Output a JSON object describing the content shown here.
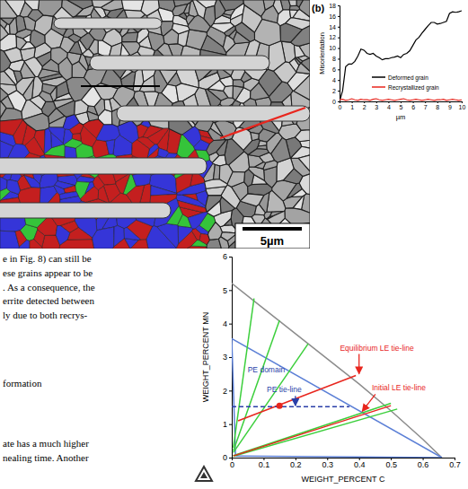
{
  "micrograph": {
    "scale_bar": "5µm"
  },
  "chart_data": [
    {
      "type": "line",
      "panel_label": "(b)",
      "x_label": "µm",
      "y_label": "Misorientation",
      "x": [
        0,
        0.25,
        0.5,
        0.75,
        1,
        1.25,
        1.5,
        1.75,
        2,
        2.25,
        2.5,
        2.75,
        3,
        3.25,
        3.5,
        3.75,
        4,
        4.25,
        4.5,
        4.75,
        5,
        5.25,
        5.5,
        5.75,
        6,
        6.25,
        6.5,
        6.75,
        7,
        7.25,
        7.5,
        7.75,
        8,
        8.25,
        8.5,
        8.75,
        9,
        9.25,
        9.5,
        9.75,
        10
      ],
      "xlim": [
        0,
        10
      ],
      "xticks": [
        0,
        1,
        2,
        3,
        4,
        5,
        6,
        7,
        8,
        9,
        10
      ],
      "ylim": [
        0,
        18
      ],
      "yticks": [
        0,
        2,
        4,
        6,
        8,
        10,
        12,
        14,
        16,
        18
      ],
      "legend": "lower right",
      "series": [
        {
          "name": "Deformed grain",
          "color": "#000000",
          "line_style": "solid",
          "values": [
            0,
            2,
            6.5,
            7,
            7,
            7.5,
            8.5,
            9.8,
            9.6,
            9,
            8.8,
            9,
            8.5,
            8.2,
            7.8,
            8,
            8,
            8.2,
            8.3,
            8.5,
            8.2,
            8.8,
            9,
            9.5,
            10.5,
            11.5,
            12,
            12.8,
            13.5,
            14.2,
            14.8,
            14.8,
            14.5,
            14.6,
            14.8,
            15,
            16.5,
            16.8,
            16.7,
            16.8,
            17
          ]
        },
        {
          "name": "Recrystallized grain",
          "color": "#e8261e",
          "line_style": "solid",
          "values": [
            0.3,
            0.4,
            0.2,
            0.3,
            0.5,
            0.3,
            0.2,
            0.4,
            0.3,
            0.3,
            0.2,
            0.4,
            0.5,
            0.3,
            0.2,
            0.3,
            0.4,
            0.3,
            0.2,
            0.3,
            0.4,
            0.5,
            0.3,
            0.2,
            0.3,
            0.4,
            0.3,
            0.2,
            0.3,
            0.4,
            0.3,
            0.2,
            0.3,
            0.3,
            0.4,
            0.2,
            0.3,
            0.4,
            0.3,
            0.2,
            0.3
          ]
        }
      ]
    },
    {
      "type": "line",
      "x_label": "WEIGHT_PERCENT C",
      "y_label": "WEIGHT_PERCENT MN",
      "xlim": [
        0,
        0.7
      ],
      "xticks": [
        0,
        0.1,
        0.2,
        0.3,
        0.4,
        0.5,
        0.6,
        0.7
      ],
      "ylim": [
        0,
        6
      ],
      "yticks": [
        0,
        1,
        2,
        3,
        4,
        5,
        6
      ],
      "series": [
        {
          "color": "#8c8c8c",
          "line_style": "solid",
          "x": [
            0,
            0.1,
            0.2,
            0.3,
            0.4,
            0.5,
            0.6,
            0.66
          ],
          "values": [
            5.2,
            4.45,
            3.7,
            2.95,
            2.2,
            1.4,
            0.55,
            0
          ]
        },
        {
          "color": "#5b7fd6",
          "line_style": "solid",
          "x": [
            0,
            0.66
          ],
          "values": [
            3.55,
            0
          ]
        },
        {
          "color": "#5b7fd6",
          "line_style": "solid",
          "x": [
            0.012,
            0
          ],
          "values": [
            0.05,
            3.55
          ]
        },
        {
          "color": "#5b7fd6",
          "line_style": "solid",
          "x": [
            0.012,
            0.66
          ],
          "values": [
            0.05,
            0
          ]
        },
        {
          "color": "#3ccf3c",
          "line_style": "solid",
          "x": [
            0.005,
            0.07
          ],
          "values": [
            0.3,
            4.75
          ]
        },
        {
          "color": "#3ccf3c",
          "line_style": "solid",
          "x": [
            0.005,
            0.15
          ],
          "values": [
            0.2,
            4.1
          ]
        },
        {
          "color": "#3ccf3c",
          "line_style": "solid",
          "x": [
            0.005,
            0.24
          ],
          "values": [
            0.15,
            3.4
          ]
        },
        {
          "color": "#3ccf3c",
          "line_style": "solid",
          "x": [
            0.005,
            0.52
          ],
          "values": [
            0.04,
            1.45
          ]
        },
        {
          "color": "#3ccf3c",
          "line_style": "solid",
          "x": [
            0.005,
            0.5
          ],
          "values": [
            0.06,
            1.62
          ]
        },
        {
          "color": "#e8261e",
          "line_style": "solid",
          "x": [
            0.005,
            0.5
          ],
          "values": [
            0.05,
            1.55
          ]
        },
        {
          "color": "#e8261e",
          "line_style": "solid",
          "x": [
            0.02,
            0.39
          ],
          "values": [
            1.1,
            2.45
          ]
        },
        {
          "color": "#2a3fa8",
          "line_style": "dashed",
          "x": [
            0,
            0.37
          ],
          "values": [
            1.52,
            1.52
          ]
        },
        {
          "color": "#e8261e",
          "line_style": "none",
          "marker": "circle",
          "x": [
            0.15
          ],
          "values": [
            1.55
          ]
        }
      ],
      "annotations": [
        {
          "text": "PE domain",
          "x": 0.05,
          "y": 2.55,
          "color": "#2a3fa8"
        },
        {
          "text": "PE tie-line",
          "x": 0.11,
          "y": 1.95,
          "color": "#2a3fa8",
          "arrow": [
            0.2,
            1.55
          ]
        },
        {
          "text": "Equilibrium LE tie-line",
          "x": 0.34,
          "y": 3.2,
          "color": "#e8261e",
          "arrow": [
            0.4,
            2.5
          ]
        },
        {
          "text": "Initial LE tie-line",
          "x": 0.44,
          "y": 2.0,
          "color": "#e8261e",
          "arrow": [
            0.41,
            1.38
          ]
        }
      ]
    }
  ],
  "text": {
    "column_lines": [
      "e in Fig. 8) can still be",
      "ese grains appear to be",
      ". As a consequence, the",
      "errite detected between",
      "ly due to both recrys-"
    ],
    "heading": "formation",
    "lower_lines": [
      "ate has a much higher",
      "nealing time. Another"
    ]
  }
}
